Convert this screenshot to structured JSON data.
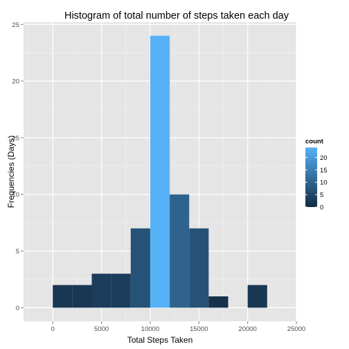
{
  "chart_data": {
    "type": "bar",
    "title": "Histogram of total number of steps taken each day",
    "xlabel": "Total Steps Taken",
    "ylabel": "Frequencies (Days)",
    "xlim": [
      -3000,
      25000
    ],
    "ylim": [
      -1.2,
      25.2
    ],
    "x_ticks": [
      0,
      5000,
      10000,
      15000,
      20000,
      25000
    ],
    "x_tick_labels": [
      "0",
      "5000",
      "10000",
      "15000",
      "20000",
      "25000"
    ],
    "y_ticks": [
      0,
      5,
      10,
      15,
      20,
      25
    ],
    "y_tick_labels": [
      "0",
      "5",
      "10",
      "15",
      "20",
      "25"
    ],
    "binwidth": 2000,
    "bins": [
      {
        "x_start": 0,
        "x_end": 2000,
        "count": 2
      },
      {
        "x_start": 2000,
        "x_end": 4000,
        "count": 2
      },
      {
        "x_start": 4000,
        "x_end": 6000,
        "count": 3
      },
      {
        "x_start": 6000,
        "x_end": 8000,
        "count": 3
      },
      {
        "x_start": 8000,
        "x_end": 10000,
        "count": 7
      },
      {
        "x_start": 10000,
        "x_end": 12000,
        "count": 24
      },
      {
        "x_start": 12000,
        "x_end": 14000,
        "count": 10
      },
      {
        "x_start": 14000,
        "x_end": 16000,
        "count": 7
      },
      {
        "x_start": 16000,
        "x_end": 18000,
        "count": 1
      },
      {
        "x_start": 18000,
        "x_end": 20000,
        "count": 0
      },
      {
        "x_start": 20000,
        "x_end": 22000,
        "count": 2
      }
    ],
    "grid": true,
    "legend": {
      "title": "count",
      "position": "right",
      "type": "colorbar",
      "breaks": [
        0,
        5,
        10,
        15,
        20
      ],
      "break_labels": [
        "0",
        "5",
        "10",
        "15",
        "20"
      ],
      "low_color": "#132B43",
      "high_color": "#56B1F7",
      "range": [
        0,
        24
      ]
    },
    "panel_background": "#e5e5e5",
    "grid_color": "#ffffff"
  }
}
